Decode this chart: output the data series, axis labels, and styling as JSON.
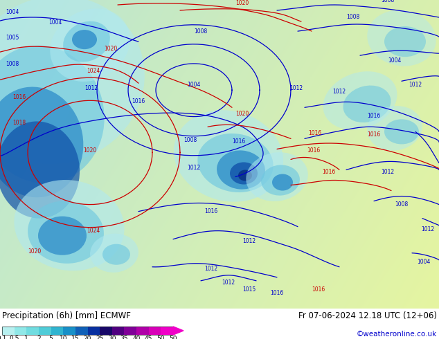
{
  "title_left": "Precipitation (6h) [mm] ECMWF",
  "title_right": "Fr 07-06-2024 12.18 UTC (12+06)",
  "credit": "©weatheronline.co.uk",
  "colorbar_levels": [
    0.1,
    0.5,
    1,
    2,
    5,
    10,
    15,
    20,
    25,
    30,
    35,
    40,
    45,
    50
  ],
  "colorbar_colors": [
    "#b8f0f0",
    "#90e8e8",
    "#70dce0",
    "#50ccd8",
    "#30b4d0",
    "#1890c8",
    "#1060b8",
    "#0830a0",
    "#180868",
    "#500080",
    "#800098",
    "#b000a8",
    "#d800b8",
    "#f000c8"
  ],
  "bg_color_left": "#c8eaf8",
  "bg_color_right": "#d8f0c8",
  "figsize": [
    6.34,
    4.9
  ],
  "dpi": 100,
  "title_fontsize": 8.5,
  "credit_fontsize": 7.5,
  "credit_color": "#0000cc",
  "label_fontsize": 6.5,
  "bar_bg": "#ffffff",
  "map_green": "#c8e8b0",
  "map_blue_light": "#c0eaf0",
  "map_ocean": "#a8d8e8"
}
